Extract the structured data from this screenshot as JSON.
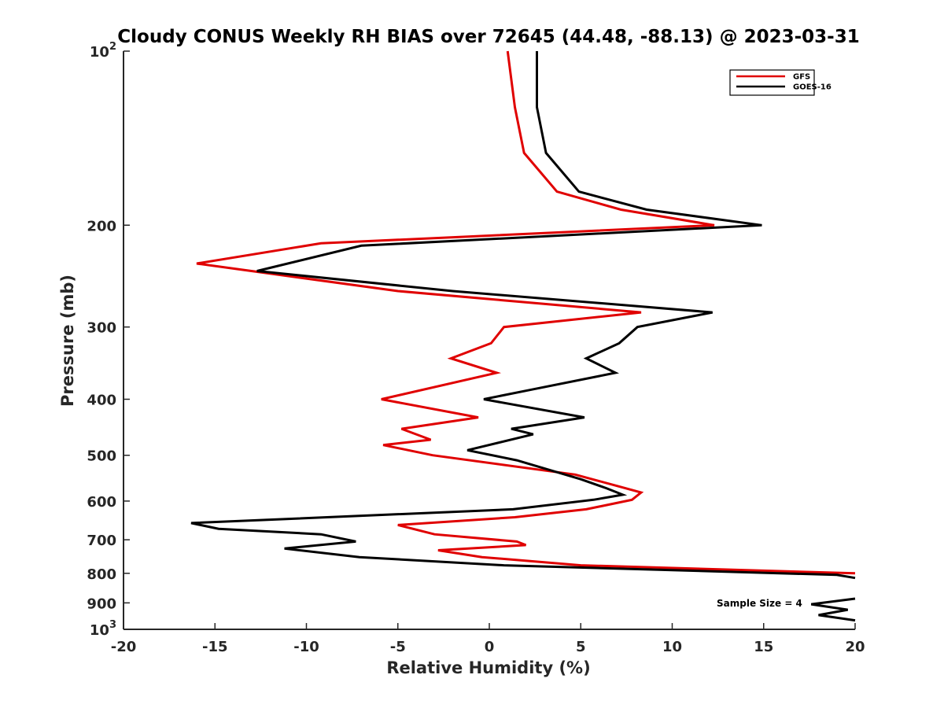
{
  "chart_data": {
    "type": "line",
    "title": "Cloudy CONUS Weekly RH BIAS over 72645 (44.48, -88.13) @ 2023-03-31",
    "xlabel": "Relative Humidity (%)",
    "ylabel": "Pressure (mb)",
    "xlim": [
      -20,
      20
    ],
    "ylim": [
      100,
      1000
    ],
    "yscale": "log",
    "y_reversed": true,
    "grid": false,
    "legend_position": "top-right",
    "x_ticks": [
      -20,
      -15,
      -10,
      -5,
      0,
      5,
      10,
      15,
      20
    ],
    "x_tick_labels": [
      "-20",
      "-15",
      "-10",
      "-5",
      "0",
      "5",
      "10",
      "15",
      "20"
    ],
    "y_ticks": [
      100,
      200,
      300,
      400,
      500,
      600,
      700,
      800,
      900,
      1000
    ],
    "y_tick_labels": [
      "10^2",
      "200",
      "300",
      "400",
      "500",
      "600",
      "700",
      "800",
      "900",
      "10^3"
    ],
    "annotation": "Sample Size = 4",
    "series": [
      {
        "name": "GFS",
        "color": "#e00000",
        "points": [
          [
            1.0,
            100
          ],
          [
            1.4,
            125
          ],
          [
            1.9,
            150
          ],
          [
            3.7,
            175
          ],
          [
            7.2,
            188
          ],
          [
            12.3,
            200
          ],
          [
            -9.2,
            215
          ],
          [
            -16.0,
            233
          ],
          [
            -5.0,
            260
          ],
          [
            8.3,
            283
          ],
          [
            0.8,
            300
          ],
          [
            0.1,
            320
          ],
          [
            -2.1,
            340
          ],
          [
            0.4,
            360
          ],
          [
            -5.9,
            400
          ],
          [
            -0.6,
            430
          ],
          [
            -4.8,
            450
          ],
          [
            -3.2,
            470
          ],
          [
            -5.8,
            480
          ],
          [
            -3.1,
            500
          ],
          [
            4.7,
            540
          ],
          [
            7.0,
            565
          ],
          [
            8.3,
            580
          ],
          [
            7.8,
            597
          ],
          [
            5.3,
            620
          ],
          [
            1.4,
            640
          ],
          [
            -5.0,
            660
          ],
          [
            -3.0,
            685
          ],
          [
            1.5,
            705
          ],
          [
            2.0,
            715
          ],
          [
            -2.8,
            730
          ],
          [
            -0.4,
            750
          ],
          [
            5.0,
            775
          ],
          [
            20.0,
            800
          ]
        ]
      },
      {
        "name": "GOES-16",
        "color": "#000000",
        "points": [
          [
            2.6,
            100
          ],
          [
            2.6,
            125
          ],
          [
            3.1,
            150
          ],
          [
            4.9,
            175
          ],
          [
            8.6,
            188
          ],
          [
            14.9,
            200
          ],
          [
            -7.0,
            217
          ],
          [
            -12.7,
            240
          ],
          [
            -2.0,
            260
          ],
          [
            12.2,
            283
          ],
          [
            8.1,
            300
          ],
          [
            7.1,
            320
          ],
          [
            5.3,
            340
          ],
          [
            6.9,
            360
          ],
          [
            2.3,
            385
          ],
          [
            -0.3,
            400
          ],
          [
            5.2,
            430
          ],
          [
            1.2,
            450
          ],
          [
            2.4,
            460
          ],
          [
            -1.2,
            490
          ],
          [
            1.5,
            510
          ],
          [
            5.0,
            550
          ],
          [
            6.4,
            570
          ],
          [
            7.3,
            585
          ],
          [
            5.7,
            597
          ],
          [
            1.3,
            620
          ],
          [
            -16.3,
            655
          ],
          [
            -14.8,
            670
          ],
          [
            -9.2,
            685
          ],
          [
            -7.3,
            705
          ],
          [
            -11.2,
            725
          ],
          [
            -7.1,
            750
          ],
          [
            0.8,
            775
          ],
          [
            19.0,
            805
          ],
          [
            20.0,
            815
          ]
        ]
      },
      {
        "name": "",
        "color": "#000000",
        "points": [
          [
            20.0,
            885
          ],
          [
            17.6,
            905
          ],
          [
            19.6,
            925
          ],
          [
            18.0,
            945
          ],
          [
            20.0,
            965
          ]
        ]
      }
    ]
  }
}
